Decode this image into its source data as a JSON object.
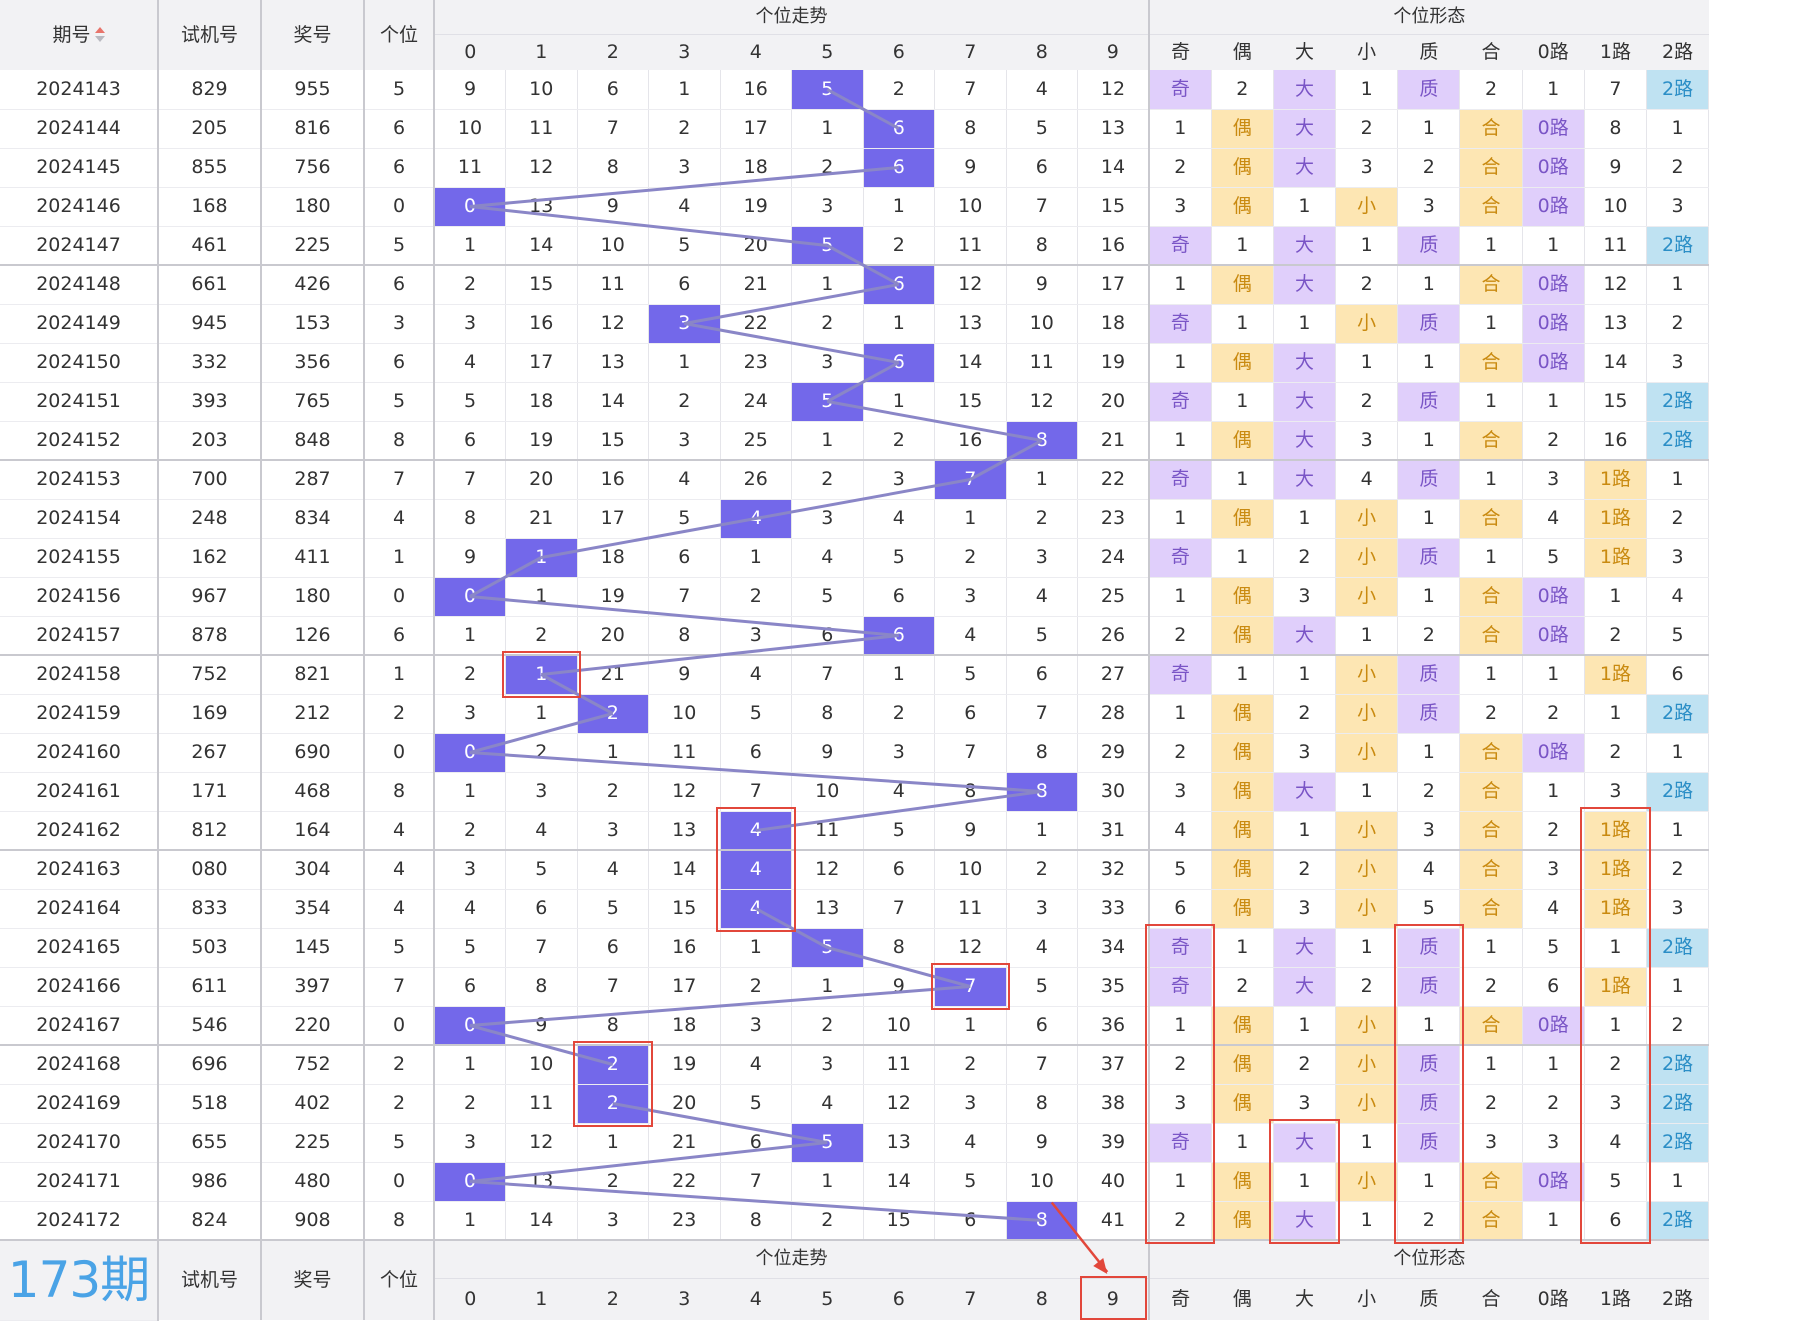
{
  "header": {
    "issue": "期号",
    "test_no": "试机号",
    "prize_no": "奖号",
    "unit": "个位",
    "trend_group": "个位走势",
    "shape_group": "个位形态",
    "digits": [
      "0",
      "1",
      "2",
      "3",
      "4",
      "5",
      "6",
      "7",
      "8",
      "9"
    ],
    "shape_cols": [
      "奇",
      "偶",
      "大",
      "小",
      "质",
      "合",
      "0路",
      "1路",
      "2路"
    ]
  },
  "rows": [
    {
      "issue": "2024143",
      "test": "829",
      "prize": "955",
      "unit": "5",
      "trend": [
        "9",
        "10",
        "6",
        "1",
        "16",
        "5",
        "2",
        "7",
        "4",
        "12"
      ],
      "shape": [
        "奇",
        "2",
        "大",
        "1",
        "质",
        "2",
        "1",
        "7",
        "2路"
      ]
    },
    {
      "issue": "2024144",
      "test": "205",
      "prize": "816",
      "unit": "6",
      "trend": [
        "10",
        "11",
        "7",
        "2",
        "17",
        "1",
        "6",
        "8",
        "5",
        "13"
      ],
      "shape": [
        "1",
        "偶",
        "大",
        "2",
        "1",
        "合",
        "0路",
        "8",
        "1"
      ]
    },
    {
      "issue": "2024145",
      "test": "855",
      "prize": "756",
      "unit": "6",
      "trend": [
        "11",
        "12",
        "8",
        "3",
        "18",
        "2",
        "6",
        "9",
        "6",
        "14"
      ],
      "shape": [
        "2",
        "偶",
        "大",
        "3",
        "2",
        "合",
        "0路",
        "9",
        "2"
      ]
    },
    {
      "issue": "2024146",
      "test": "168",
      "prize": "180",
      "unit": "0",
      "trend": [
        "0",
        "13",
        "9",
        "4",
        "19",
        "3",
        "1",
        "10",
        "7",
        "15"
      ],
      "shape": [
        "3",
        "偶",
        "1",
        "小",
        "3",
        "合",
        "0路",
        "10",
        "3"
      ]
    },
    {
      "issue": "2024147",
      "test": "461",
      "prize": "225",
      "unit": "5",
      "trend": [
        "1",
        "14",
        "10",
        "5",
        "20",
        "5",
        "2",
        "11",
        "8",
        "16"
      ],
      "shape": [
        "奇",
        "1",
        "大",
        "1",
        "质",
        "1",
        "1",
        "11",
        "2路"
      ]
    },
    {
      "issue": "2024148",
      "test": "661",
      "prize": "426",
      "unit": "6",
      "trend": [
        "2",
        "15",
        "11",
        "6",
        "21",
        "1",
        "6",
        "12",
        "9",
        "17"
      ],
      "shape": [
        "1",
        "偶",
        "大",
        "2",
        "1",
        "合",
        "0路",
        "12",
        "1"
      ]
    },
    {
      "issue": "2024149",
      "test": "945",
      "prize": "153",
      "unit": "3",
      "trend": [
        "3",
        "16",
        "12",
        "3",
        "22",
        "2",
        "1",
        "13",
        "10",
        "18"
      ],
      "shape": [
        "奇",
        "1",
        "1",
        "小",
        "质",
        "1",
        "0路",
        "13",
        "2"
      ]
    },
    {
      "issue": "2024150",
      "test": "332",
      "prize": "356",
      "unit": "6",
      "trend": [
        "4",
        "17",
        "13",
        "1",
        "23",
        "3",
        "6",
        "14",
        "11",
        "19"
      ],
      "shape": [
        "1",
        "偶",
        "大",
        "1",
        "1",
        "合",
        "0路",
        "14",
        "3"
      ]
    },
    {
      "issue": "2024151",
      "test": "393",
      "prize": "765",
      "unit": "5",
      "trend": [
        "5",
        "18",
        "14",
        "2",
        "24",
        "5",
        "1",
        "15",
        "12",
        "20"
      ],
      "shape": [
        "奇",
        "1",
        "大",
        "2",
        "质",
        "1",
        "1",
        "15",
        "2路"
      ]
    },
    {
      "issue": "2024152",
      "test": "203",
      "prize": "848",
      "unit": "8",
      "trend": [
        "6",
        "19",
        "15",
        "3",
        "25",
        "1",
        "2",
        "16",
        "8",
        "21"
      ],
      "shape": [
        "1",
        "偶",
        "大",
        "3",
        "1",
        "合",
        "2",
        "16",
        "2路"
      ]
    },
    {
      "issue": "2024153",
      "test": "700",
      "prize": "287",
      "unit": "7",
      "trend": [
        "7",
        "20",
        "16",
        "4",
        "26",
        "2",
        "3",
        "7",
        "1",
        "22"
      ],
      "shape": [
        "奇",
        "1",
        "大",
        "4",
        "质",
        "1",
        "3",
        "1路",
        "1"
      ]
    },
    {
      "issue": "2024154",
      "test": "248",
      "prize": "834",
      "unit": "4",
      "trend": [
        "8",
        "21",
        "17",
        "5",
        "4",
        "3",
        "4",
        "1",
        "2",
        "23"
      ],
      "shape": [
        "1",
        "偶",
        "1",
        "小",
        "1",
        "合",
        "4",
        "1路",
        "2"
      ]
    },
    {
      "issue": "2024155",
      "test": "162",
      "prize": "411",
      "unit": "1",
      "trend": [
        "9",
        "1",
        "18",
        "6",
        "1",
        "4",
        "5",
        "2",
        "3",
        "24"
      ],
      "shape": [
        "奇",
        "1",
        "2",
        "小",
        "质",
        "1",
        "5",
        "1路",
        "3"
      ]
    },
    {
      "issue": "2024156",
      "test": "967",
      "prize": "180",
      "unit": "0",
      "trend": [
        "0",
        "1",
        "19",
        "7",
        "2",
        "5",
        "6",
        "3",
        "4",
        "25"
      ],
      "shape": [
        "1",
        "偶",
        "3",
        "小",
        "1",
        "合",
        "0路",
        "1",
        "4"
      ]
    },
    {
      "issue": "2024157",
      "test": "878",
      "prize": "126",
      "unit": "6",
      "trend": [
        "1",
        "2",
        "20",
        "8",
        "3",
        "6",
        "6",
        "4",
        "5",
        "26"
      ],
      "shape": [
        "2",
        "偶",
        "大",
        "1",
        "2",
        "合",
        "0路",
        "2",
        "5"
      ]
    },
    {
      "issue": "2024158",
      "test": "752",
      "prize": "821",
      "unit": "1",
      "trend": [
        "2",
        "1",
        "21",
        "9",
        "4",
        "7",
        "1",
        "5",
        "6",
        "27"
      ],
      "shape": [
        "奇",
        "1",
        "1",
        "小",
        "质",
        "1",
        "1",
        "1路",
        "6"
      ]
    },
    {
      "issue": "2024159",
      "test": "169",
      "prize": "212",
      "unit": "2",
      "trend": [
        "3",
        "1",
        "2",
        "10",
        "5",
        "8",
        "2",
        "6",
        "7",
        "28"
      ],
      "shape": [
        "1",
        "偶",
        "2",
        "小",
        "质",
        "2",
        "2",
        "1",
        "2路"
      ]
    },
    {
      "issue": "2024160",
      "test": "267",
      "prize": "690",
      "unit": "0",
      "trend": [
        "0",
        "2",
        "1",
        "11",
        "6",
        "9",
        "3",
        "7",
        "8",
        "29"
      ],
      "shape": [
        "2",
        "偶",
        "3",
        "小",
        "1",
        "合",
        "0路",
        "2",
        "1"
      ]
    },
    {
      "issue": "2024161",
      "test": "171",
      "prize": "468",
      "unit": "8",
      "trend": [
        "1",
        "3",
        "2",
        "12",
        "7",
        "10",
        "4",
        "8",
        "8",
        "30"
      ],
      "shape": [
        "3",
        "偶",
        "大",
        "1",
        "2",
        "合",
        "1",
        "3",
        "2路"
      ]
    },
    {
      "issue": "2024162",
      "test": "812",
      "prize": "164",
      "unit": "4",
      "trend": [
        "2",
        "4",
        "3",
        "13",
        "4",
        "11",
        "5",
        "9",
        "1",
        "31"
      ],
      "shape": [
        "4",
        "偶",
        "1",
        "小",
        "3",
        "合",
        "2",
        "1路",
        "1"
      ]
    },
    {
      "issue": "2024163",
      "test": "080",
      "prize": "304",
      "unit": "4",
      "trend": [
        "3",
        "5",
        "4",
        "14",
        "4",
        "12",
        "6",
        "10",
        "2",
        "32"
      ],
      "shape": [
        "5",
        "偶",
        "2",
        "小",
        "4",
        "合",
        "3",
        "1路",
        "2"
      ]
    },
    {
      "issue": "2024164",
      "test": "833",
      "prize": "354",
      "unit": "4",
      "trend": [
        "4",
        "6",
        "5",
        "15",
        "4",
        "13",
        "7",
        "11",
        "3",
        "33"
      ],
      "shape": [
        "6",
        "偶",
        "3",
        "小",
        "5",
        "合",
        "4",
        "1路",
        "3"
      ]
    },
    {
      "issue": "2024165",
      "test": "503",
      "prize": "145",
      "unit": "5",
      "trend": [
        "5",
        "7",
        "6",
        "16",
        "1",
        "5",
        "8",
        "12",
        "4",
        "34"
      ],
      "shape": [
        "奇",
        "1",
        "大",
        "1",
        "质",
        "1",
        "5",
        "1",
        "2路"
      ]
    },
    {
      "issue": "2024166",
      "test": "611",
      "prize": "397",
      "unit": "7",
      "trend": [
        "6",
        "8",
        "7",
        "17",
        "2",
        "1",
        "9",
        "7",
        "5",
        "35"
      ],
      "shape": [
        "奇",
        "2",
        "大",
        "2",
        "质",
        "2",
        "6",
        "1路",
        "1"
      ]
    },
    {
      "issue": "2024167",
      "test": "546",
      "prize": "220",
      "unit": "0",
      "trend": [
        "0",
        "9",
        "8",
        "18",
        "3",
        "2",
        "10",
        "1",
        "6",
        "36"
      ],
      "shape": [
        "1",
        "偶",
        "1",
        "小",
        "1",
        "合",
        "0路",
        "1",
        "2"
      ]
    },
    {
      "issue": "2024168",
      "test": "696",
      "prize": "752",
      "unit": "2",
      "trend": [
        "1",
        "10",
        "2",
        "19",
        "4",
        "3",
        "11",
        "2",
        "7",
        "37"
      ],
      "shape": [
        "2",
        "偶",
        "2",
        "小",
        "质",
        "1",
        "1",
        "2",
        "2路"
      ]
    },
    {
      "issue": "2024169",
      "test": "518",
      "prize": "402",
      "unit": "2",
      "trend": [
        "2",
        "11",
        "2",
        "20",
        "5",
        "4",
        "12",
        "3",
        "8",
        "38"
      ],
      "shape": [
        "3",
        "偶",
        "3",
        "小",
        "质",
        "2",
        "2",
        "3",
        "2路"
      ]
    },
    {
      "issue": "2024170",
      "test": "655",
      "prize": "225",
      "unit": "5",
      "trend": [
        "3",
        "12",
        "1",
        "21",
        "6",
        "5",
        "13",
        "4",
        "9",
        "39"
      ],
      "shape": [
        "奇",
        "1",
        "大",
        "1",
        "质",
        "3",
        "3",
        "4",
        "2路"
      ]
    },
    {
      "issue": "2024171",
      "test": "986",
      "prize": "480",
      "unit": "0",
      "trend": [
        "0",
        "13",
        "2",
        "22",
        "7",
        "1",
        "14",
        "5",
        "10",
        "40"
      ],
      "shape": [
        "1",
        "偶",
        "1",
        "小",
        "1",
        "合",
        "0路",
        "5",
        "1"
      ]
    },
    {
      "issue": "2024172",
      "test": "824",
      "prize": "908",
      "unit": "8",
      "trend": [
        "1",
        "14",
        "3",
        "23",
        "8",
        "2",
        "15",
        "6",
        "8",
        "41"
      ],
      "shape": [
        "2",
        "偶",
        "大",
        "1",
        "2",
        "合",
        "1",
        "6",
        "2路"
      ]
    }
  ],
  "footer": {
    "issue": "173期",
    "test_no": "试机号",
    "prize_no": "奖号",
    "unit": "个位",
    "trend_group": "个位走势",
    "shape_group": "个位形态"
  },
  "colors": {
    "hit": "#7368ea",
    "purple": "#e0cffb",
    "yellow": "#fde6b3",
    "blue": "#bfe2f2",
    "line": "#8a86c7",
    "highlight": "#e2473b",
    "period_label": "#4aa3e6"
  }
}
